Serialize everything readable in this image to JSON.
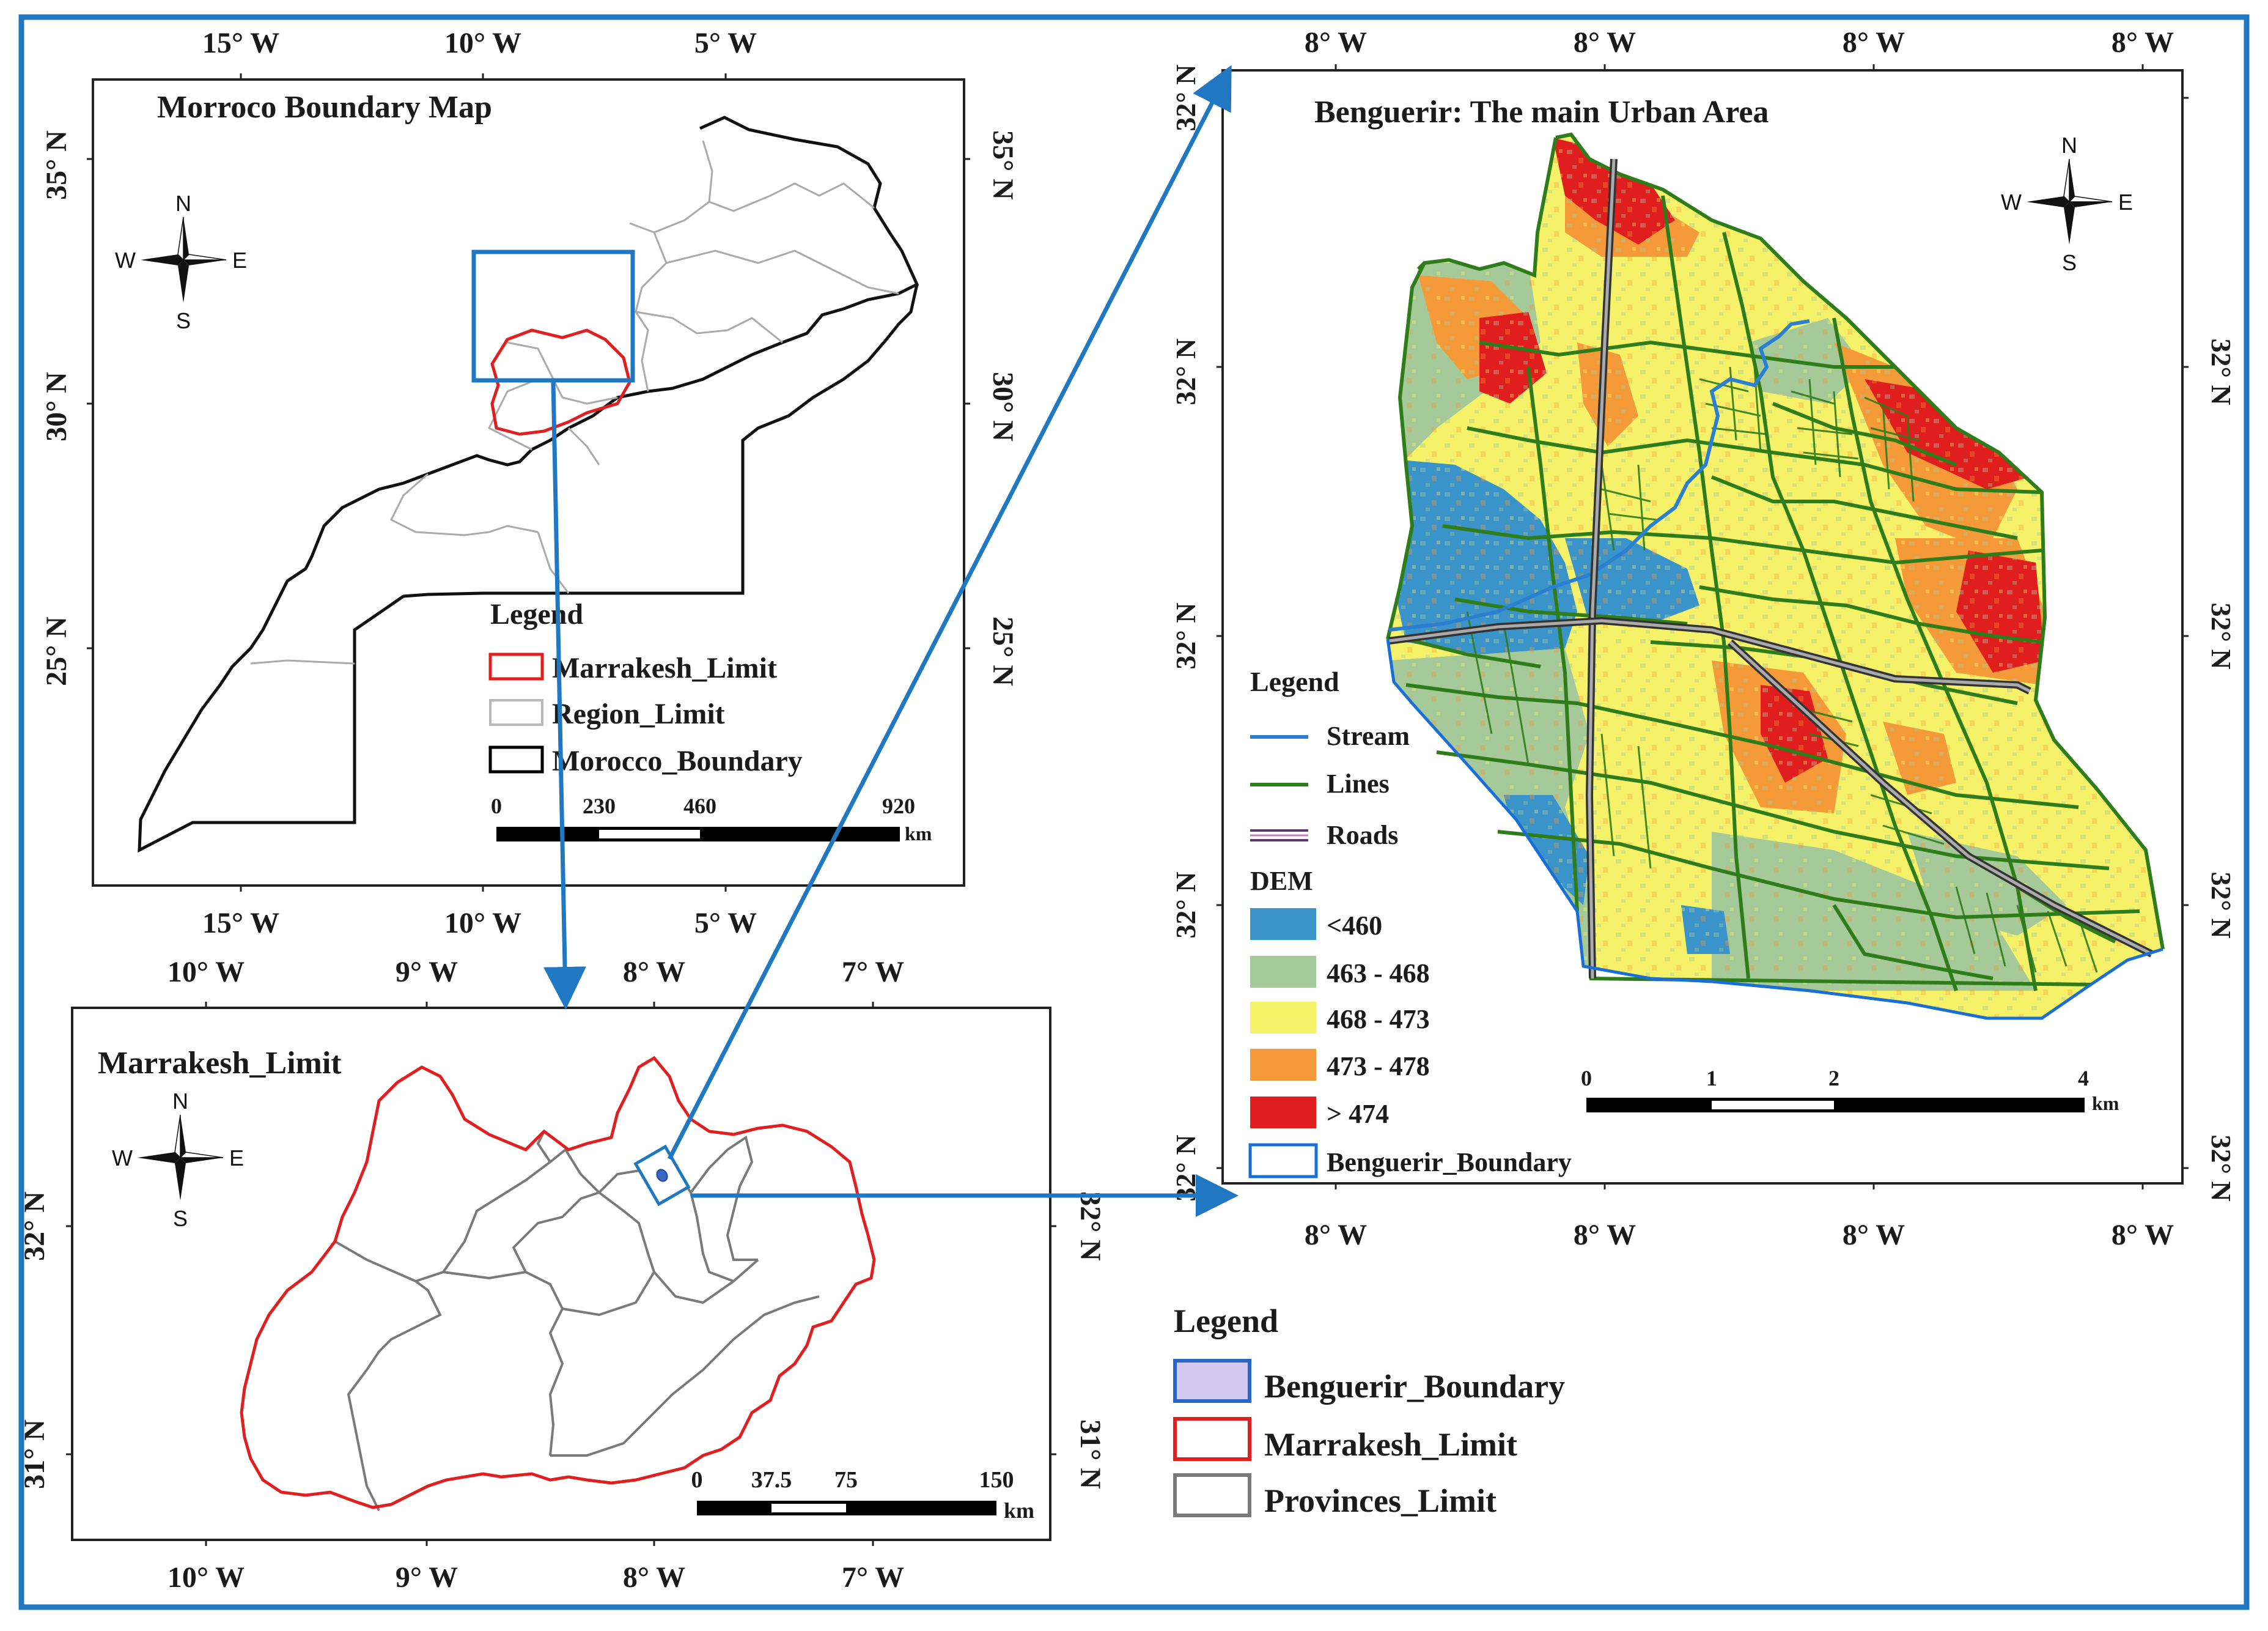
{
  "panels": {
    "morocco": {
      "title": "Morroco Boundary Map",
      "lon_top": [
        "15° W",
        "10° W",
        "5° W"
      ],
      "lon_bottom": [
        "15° W",
        "10° W",
        "5° W"
      ],
      "lat_left": [
        "35° N",
        "30° N",
        "25° N"
      ],
      "lat_right": [
        "35° N",
        "30° N",
        "25° N"
      ],
      "legend": {
        "title": "Legend",
        "items": [
          {
            "label": "Marrakesh_Limit",
            "color": "#e02020"
          },
          {
            "label": "Region_Limit",
            "color": "#b8b8b8"
          },
          {
            "label": "Morocco_Boundary",
            "color": "#000000"
          }
        ]
      },
      "scale": {
        "ticks": [
          "0",
          "230",
          "460",
          "920"
        ],
        "unit": "km"
      }
    },
    "marrakesh": {
      "title": "Marrakesh_Limit",
      "lon_top": [
        "10° W",
        "9° W",
        "8° W",
        "7° W"
      ],
      "lon_bottom": [
        "10° W",
        "9° W",
        "8° W",
        "7° W"
      ],
      "lat_left": [
        "32° N",
        "31° N"
      ],
      "lat_right": [
        "32° N",
        "31° N"
      ],
      "scale": {
        "ticks": [
          "0",
          "37.5",
          "75",
          "150"
        ],
        "unit": "km"
      }
    },
    "benguerir": {
      "title": "Benguerir: The main Urban Area",
      "lon_top": [
        "8° W",
        "8° W",
        "8° W",
        "8° W"
      ],
      "lon_bottom": [
        "8° W",
        "8° W",
        "8° W",
        "8° W"
      ],
      "lat_left": [
        "32° N",
        "32° N",
        "32° N",
        "32° N",
        "32° N"
      ],
      "lat_right": [
        "32° N",
        "32° N",
        "32° N",
        "32° N"
      ],
      "legend": {
        "title": "Legend",
        "lines": [
          {
            "label": "Stream",
            "color": "#2a7fd0"
          },
          {
            "label": "Lines",
            "color": "#2e7d1a"
          },
          {
            "label": "Roads",
            "color": "#5a3a6a"
          }
        ],
        "dem_title": "DEM",
        "dem": [
          {
            "label": "<460",
            "color": "#3a93c9"
          },
          {
            "label": "463 - 468",
            "color": "#a6c99a"
          },
          {
            "label": "468 - 473",
            "color": "#f5f26a"
          },
          {
            "label": "473 - 478",
            "color": "#f59a38"
          },
          {
            "label": "> 474",
            "color": "#e01e1e"
          }
        ],
        "boundary": {
          "label": "Benguerir_Boundary",
          "color": "#1a6fd6"
        }
      },
      "scale": {
        "ticks": [
          "0",
          "1",
          "2",
          "4"
        ],
        "unit": "km"
      }
    }
  },
  "main_legend": {
    "title": "Legend",
    "items": [
      {
        "label": "Benguerir_Boundary",
        "fill": "#d2c8f0",
        "stroke": "#2a66c8"
      },
      {
        "label": "Marrakesh_Limit",
        "fill": "#ffffff",
        "stroke": "#e02020"
      },
      {
        "label": "Provinces_Limit",
        "fill": "#ffffff",
        "stroke": "#7a7a7a"
      }
    ]
  },
  "compass": {
    "n": "N",
    "s": "S",
    "e": "E",
    "w": "W"
  },
  "colors": {
    "frame": "#1f78c1",
    "arrow": "#1f78c1"
  }
}
